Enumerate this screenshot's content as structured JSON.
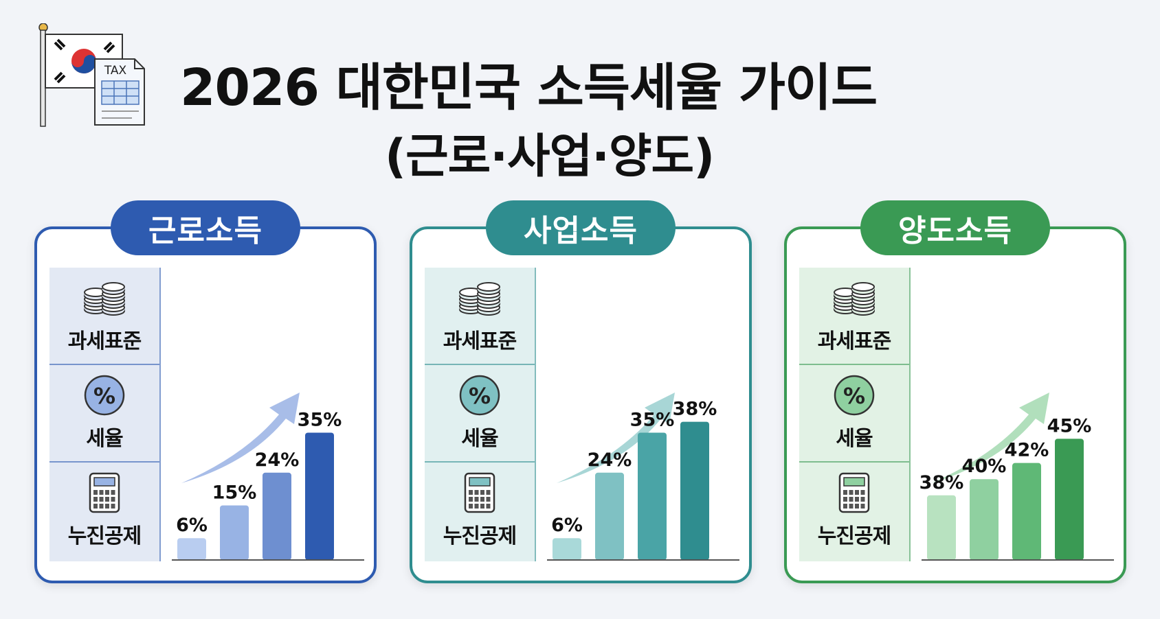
{
  "title": {
    "line1": "2026 대한민국 소득세율 가이드",
    "line2": "(근로·사업·양도)"
  },
  "logo": {
    "icon": "flag-tax-document-icon",
    "doc_label": "TAX"
  },
  "sidebar_labels": {
    "base": "과세표준",
    "rate": "세율",
    "deduction": "누진공제",
    "rate_symbol": "%"
  },
  "sidebar_icons": [
    "coin-stack-icon",
    "percent-icon",
    "calculator-icon"
  ],
  "panels": [
    {
      "title": "근로소득",
      "color": "#2e5bb0",
      "side_bg": "#e3e9f4",
      "bar_colors": [
        "#b9cdf0",
        "#98b3e4",
        "#6e8fd0",
        "#2e5bb0"
      ],
      "arrow_color": "#9fb6e6"
    },
    {
      "title": "사업소득",
      "color": "#2f8d8f",
      "side_bg": "#e1f0f0",
      "bar_colors": [
        "#a9d9d9",
        "#7fc1c3",
        "#4aa4a6",
        "#2f8d8f"
      ],
      "arrow_color": "#9fd1d2"
    },
    {
      "title": "양도소득",
      "color": "#3a9a54",
      "side_bg": "#e2f2e5",
      "bar_colors": [
        "#b8e2c0",
        "#8fd0a0",
        "#5fb876",
        "#3a9a54"
      ],
      "arrow_color": "#a9dcb5"
    }
  ],
  "chart_data": [
    {
      "type": "bar",
      "title": "근로소득",
      "values": [
        6,
        15,
        24,
        35
      ],
      "data_labels": [
        "6%",
        "15%",
        "24%",
        "35%"
      ],
      "ylim": [
        0,
        40
      ]
    },
    {
      "type": "bar",
      "title": "사업소득",
      "values": [
        6,
        24,
        35,
        38
      ],
      "data_labels": [
        "6%",
        "24%",
        "35%",
        "38%"
      ],
      "ylim": [
        0,
        40
      ]
    },
    {
      "type": "bar",
      "title": "양도소득",
      "values": [
        38,
        40,
        42,
        45
      ],
      "data_labels": [
        "38%",
        "40%",
        "42%",
        "45%"
      ],
      "ylim": [
        30,
        48
      ]
    }
  ]
}
